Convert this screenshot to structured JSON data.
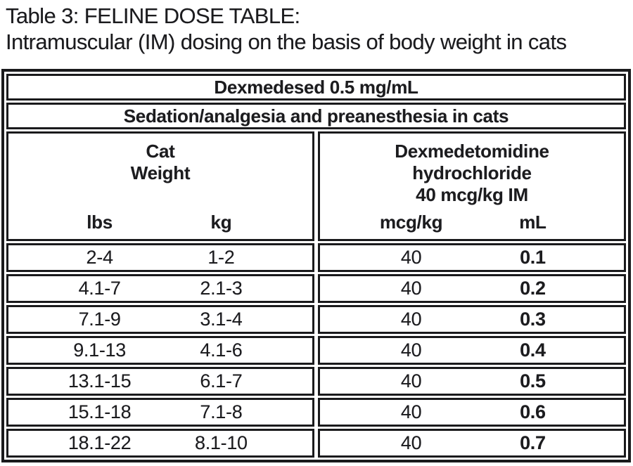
{
  "caption": {
    "line1": "Table 3: FELINE DOSE TABLE:",
    "line2": "Intramuscular (IM) dosing on the basis of body weight in cats"
  },
  "table": {
    "product_header": "Dexmedesed 0.5 mg/mL",
    "indication_header": "Sedation/analgesia and preanesthesia in cats",
    "left_group": {
      "title_line1": "Cat",
      "title_line2": "Weight",
      "col1": "lbs",
      "col2": "kg"
    },
    "right_group": {
      "title_line1": "Dexmedetomidine",
      "title_line2": "hydrochloride",
      "title_line3": "40 mcg/kg IM",
      "col1": "mcg/kg",
      "col2": "mL"
    },
    "rows": [
      {
        "lbs": "2-4",
        "kg": "1-2",
        "mcg_per_kg": "40",
        "ml": "0.1"
      },
      {
        "lbs": "4.1-7",
        "kg": "2.1-3",
        "mcg_per_kg": "40",
        "ml": "0.2"
      },
      {
        "lbs": "7.1-9",
        "kg": "3.1-4",
        "mcg_per_kg": "40",
        "ml": "0.3"
      },
      {
        "lbs": "9.1-13",
        "kg": "4.1-6",
        "mcg_per_kg": "40",
        "ml": "0.4"
      },
      {
        "lbs": "13.1-15",
        "kg": "6.1-7",
        "mcg_per_kg": "40",
        "ml": "0.5"
      },
      {
        "lbs": "15.1-18",
        "kg": "7.1-8",
        "mcg_per_kg": "40",
        "ml": "0.6"
      },
      {
        "lbs": "18.1-22",
        "kg": "8.1-10",
        "mcg_per_kg": "40",
        "ml": "0.7"
      }
    ]
  },
  "colors": {
    "text": "#1c1c1e",
    "border": "#1a1a1c",
    "background": "#ffffff"
  }
}
